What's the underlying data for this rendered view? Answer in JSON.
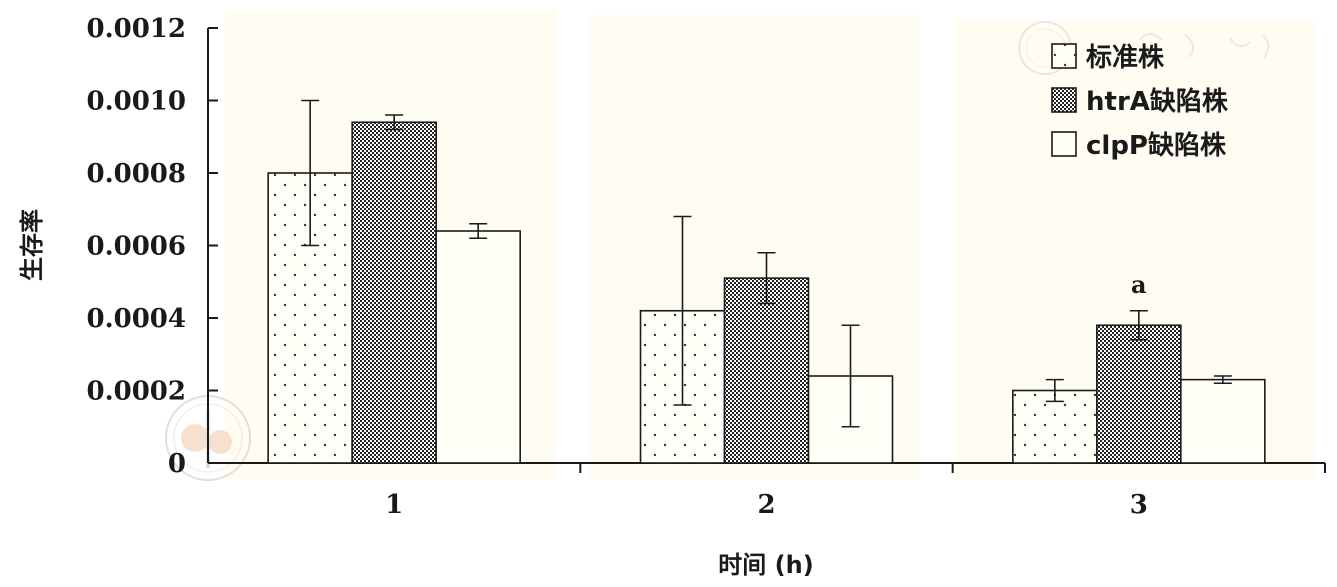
{
  "chart_data": {
    "type": "bar",
    "categories": [
      "1",
      "2",
      "3"
    ],
    "series": [
      {
        "name": "标准株",
        "values": [
          0.0008,
          0.00042,
          0.0002
        ],
        "errors": [
          0.0002,
          0.00026,
          3e-05
        ],
        "pattern": "dots",
        "color": "#ffffff"
      },
      {
        "name": "htrA缺陷株",
        "values": [
          0.00094,
          0.00051,
          0.00038
        ],
        "errors": [
          2e-05,
          7e-05,
          4e-05
        ],
        "pattern": "checker",
        "color": "#555555"
      },
      {
        "name": "clpP缺陷株",
        "values": [
          0.00064,
          0.00024,
          0.00023
        ],
        "errors": [
          2e-05,
          0.00014,
          1e-05
        ],
        "pattern": "none",
        "color": "#fffff8"
      }
    ],
    "annotations": [
      {
        "category": "3",
        "series": "htrA缺陷株",
        "text": "a"
      }
    ],
    "ylim": [
      0,
      0.0012
    ],
    "yticks": [
      "0",
      "0.0002",
      "0.0004",
      "0.0006",
      "0.0008",
      "0.0010",
      "0.0012"
    ],
    "xlabel": "时间 (h)",
    "ylabel": "生存率",
    "legend_position": "top-right",
    "grid": false
  }
}
